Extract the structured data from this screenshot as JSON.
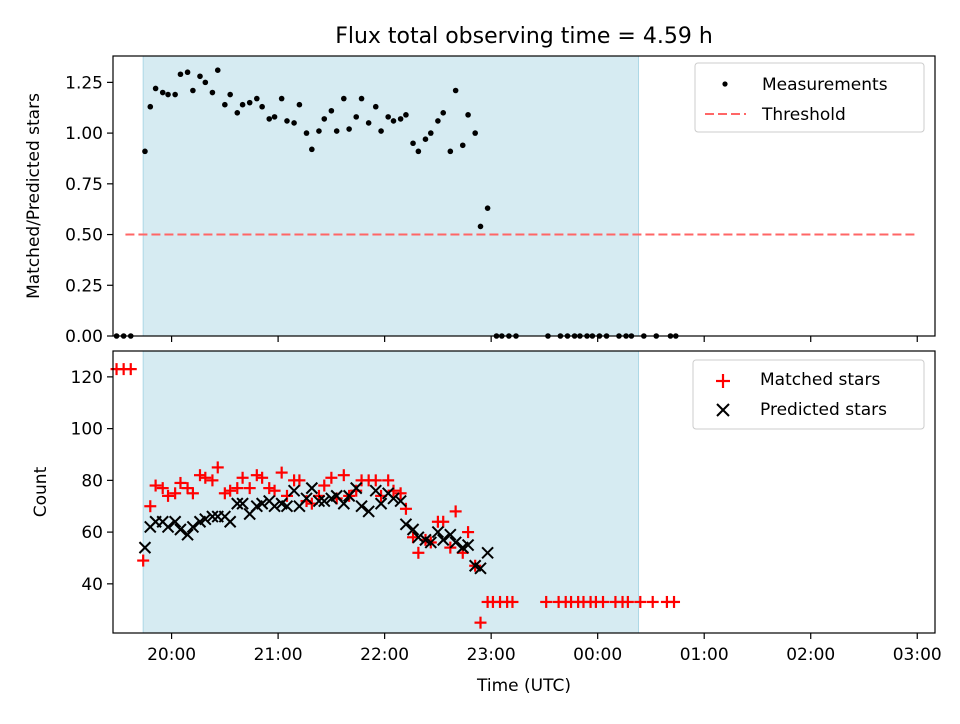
{
  "title": "Flux total observing time = 4.59 h",
  "colors": {
    "shade": "#add8e6",
    "measurement": "#000000",
    "threshold": "#ff6666",
    "matched": "#ff0000",
    "predicted": "#000000"
  },
  "chart_data": [
    {
      "type": "scatter",
      "ylabel": "Matched/Predicted stars",
      "ylim": [
        0,
        1.38
      ],
      "yticks": [
        "0.00",
        "0.25",
        "0.50",
        "0.75",
        "1.00",
        "1.25"
      ],
      "xlim": [
        "19:27",
        "03:10"
      ],
      "shaded_interval": [
        "19:44",
        "00:23"
      ],
      "legend": {
        "placement": "upper right",
        "entries": [
          "Measurements",
          "Threshold"
        ]
      },
      "threshold": {
        "name": "Threshold",
        "y": 0.5,
        "x": [
          "19:34",
          "02:59"
        ]
      },
      "series": [
        {
          "name": "Measurements",
          "marker": "dot",
          "points": [
            [
              "19:29",
              0.0
            ],
            [
              "19:33",
              0.0
            ],
            [
              "19:37",
              0.0
            ],
            [
              "19:45",
              0.91
            ],
            [
              "19:48",
              1.13
            ],
            [
              "19:51",
              1.22
            ],
            [
              "19:55",
              1.2
            ],
            [
              "19:58",
              1.19
            ],
            [
              "20:02",
              1.19
            ],
            [
              "20:05",
              1.29
            ],
            [
              "20:09",
              1.3
            ],
            [
              "20:12",
              1.21
            ],
            [
              "20:16",
              1.28
            ],
            [
              "20:19",
              1.25
            ],
            [
              "20:23",
              1.2
            ],
            [
              "20:26",
              1.31
            ],
            [
              "20:30",
              1.14
            ],
            [
              "20:33",
              1.19
            ],
            [
              "20:37",
              1.1
            ],
            [
              "20:40",
              1.14
            ],
            [
              "20:44",
              1.15
            ],
            [
              "20:48",
              1.17
            ],
            [
              "20:51",
              1.13
            ],
            [
              "20:55",
              1.07
            ],
            [
              "20:58",
              1.08
            ],
            [
              "21:02",
              1.17
            ],
            [
              "21:05",
              1.06
            ],
            [
              "21:09",
              1.05
            ],
            [
              "21:12",
              1.14
            ],
            [
              "21:16",
              1.0
            ],
            [
              "21:19",
              0.92
            ],
            [
              "21:23",
              1.01
            ],
            [
              "21:26",
              1.07
            ],
            [
              "21:30",
              1.11
            ],
            [
              "21:33",
              1.01
            ],
            [
              "21:37",
              1.17
            ],
            [
              "21:40",
              1.02
            ],
            [
              "21:44",
              1.08
            ],
            [
              "21:47",
              1.17
            ],
            [
              "21:51",
              1.05
            ],
            [
              "21:55",
              1.13
            ],
            [
              "21:58",
              1.01
            ],
            [
              "22:02",
              1.08
            ],
            [
              "22:05",
              1.06
            ],
            [
              "22:09",
              1.07
            ],
            [
              "22:12",
              1.09
            ],
            [
              "22:16",
              0.95
            ],
            [
              "22:19",
              0.91
            ],
            [
              "22:23",
              0.97
            ],
            [
              "22:26",
              1.0
            ],
            [
              "22:30",
              1.06
            ],
            [
              "22:33",
              1.1
            ],
            [
              "22:37",
              0.91
            ],
            [
              "22:40",
              1.21
            ],
            [
              "22:44",
              0.94
            ],
            [
              "22:47",
              1.09
            ],
            [
              "22:51",
              1.0
            ],
            [
              "22:54",
              0.54
            ],
            [
              "22:58",
              0.63
            ],
            [
              "23:03",
              0.0
            ],
            [
              "23:06",
              0.0
            ],
            [
              "23:10",
              0.0
            ],
            [
              "23:14",
              0.0
            ],
            [
              "23:32",
              0.0
            ],
            [
              "23:39",
              0.0
            ],
            [
              "23:43",
              0.0
            ],
            [
              "23:47",
              0.0
            ],
            [
              "23:50",
              0.0
            ],
            [
              "23:54",
              0.0
            ],
            [
              "23:57",
              0.0
            ],
            [
              "00:01",
              0.0
            ],
            [
              "00:05",
              0.0
            ],
            [
              "00:12",
              0.0
            ],
            [
              "00:16",
              0.0
            ],
            [
              "00:19",
              0.0
            ],
            [
              "00:26",
              0.0
            ],
            [
              "00:33",
              0.0
            ],
            [
              "00:41",
              0.0
            ],
            [
              "00:44",
              0.0
            ]
          ]
        }
      ]
    },
    {
      "type": "scatter",
      "title": "",
      "xlabel": "Time (UTC)",
      "ylabel": "Count",
      "ylim": [
        21,
        130
      ],
      "yticks": [
        "40",
        "60",
        "80",
        "100",
        "120"
      ],
      "xticks": [
        "20:00",
        "21:00",
        "22:00",
        "23:00",
        "00:00",
        "01:00",
        "02:00",
        "03:00"
      ],
      "xlim": [
        "19:27",
        "03:10"
      ],
      "shaded_interval": [
        "19:44",
        "00:23"
      ],
      "legend": {
        "placement": "upper right",
        "entries": [
          "Matched stars",
          "Predicted stars"
        ]
      },
      "series": [
        {
          "name": "Matched stars",
          "marker": "plus",
          "points": [
            [
              "19:29",
              123
            ],
            [
              "19:33",
              123
            ],
            [
              "19:37",
              123
            ],
            [
              "19:44",
              49
            ],
            [
              "19:48",
              70
            ],
            [
              "19:51",
              78
            ],
            [
              "19:55",
              77
            ],
            [
              "19:58",
              74
            ],
            [
              "20:02",
              75
            ],
            [
              "20:05",
              79
            ],
            [
              "20:09",
              77
            ],
            [
              "20:12",
              75
            ],
            [
              "20:16",
              82
            ],
            [
              "20:19",
              81
            ],
            [
              "20:23",
              80
            ],
            [
              "20:26",
              85
            ],
            [
              "20:30",
              75
            ],
            [
              "20:33",
              76
            ],
            [
              "20:37",
              77
            ],
            [
              "20:40",
              81
            ],
            [
              "20:44",
              77
            ],
            [
              "20:48",
              82
            ],
            [
              "20:51",
              81
            ],
            [
              "20:55",
              77
            ],
            [
              "20:58",
              76
            ],
            [
              "21:02",
              83
            ],
            [
              "21:05",
              74
            ],
            [
              "21:09",
              80
            ],
            [
              "21:12",
              80
            ],
            [
              "21:16",
              72
            ],
            [
              "21:19",
              71
            ],
            [
              "21:23",
              74
            ],
            [
              "21:26",
              78
            ],
            [
              "21:30",
              81
            ],
            [
              "21:33",
              73
            ],
            [
              "21:37",
              82
            ],
            [
              "21:40",
              74
            ],
            [
              "21:44",
              76
            ],
            [
              "21:47",
              80
            ],
            [
              "21:51",
              80
            ],
            [
              "21:55",
              80
            ],
            [
              "21:58",
              74
            ],
            [
              "22:02",
              80
            ],
            [
              "22:05",
              76
            ],
            [
              "22:09",
              75
            ],
            [
              "22:12",
              69
            ],
            [
              "22:16",
              58
            ],
            [
              "22:19",
              52
            ],
            [
              "22:23",
              57
            ],
            [
              "22:26",
              56
            ],
            [
              "22:30",
              64
            ],
            [
              "22:33",
              64
            ],
            [
              "22:37",
              54
            ],
            [
              "22:40",
              68
            ],
            [
              "22:44",
              52
            ],
            [
              "22:47",
              60
            ],
            [
              "22:51",
              47
            ],
            [
              "22:54",
              25
            ],
            [
              "22:58",
              33
            ],
            [
              "23:01",
              33
            ],
            [
              "23:05",
              33
            ],
            [
              "23:09",
              33
            ],
            [
              "23:12",
              33
            ],
            [
              "23:31",
              33
            ],
            [
              "23:38",
              33
            ],
            [
              "23:42",
              33
            ],
            [
              "23:45",
              33
            ],
            [
              "23:49",
              33
            ],
            [
              "23:52",
              33
            ],
            [
              "23:56",
              33
            ],
            [
              "23:59",
              33
            ],
            [
              "00:03",
              33
            ],
            [
              "00:10",
              33
            ],
            [
              "00:14",
              33
            ],
            [
              "00:17",
              33
            ],
            [
              "00:24",
              33
            ],
            [
              "00:31",
              33
            ],
            [
              "00:39",
              33
            ],
            [
              "00:43",
              33
            ]
          ]
        },
        {
          "name": "Predicted stars",
          "marker": "x",
          "points": [
            [
              "19:45",
              54
            ],
            [
              "19:48",
              62
            ],
            [
              "19:51",
              64
            ],
            [
              "19:55",
              64
            ],
            [
              "19:58",
              62
            ],
            [
              "20:02",
              64
            ],
            [
              "20:05",
              61
            ],
            [
              "20:09",
              59
            ],
            [
              "20:12",
              62
            ],
            [
              "20:16",
              64
            ],
            [
              "20:19",
              65
            ],
            [
              "20:23",
              66
            ],
            [
              "20:26",
              66
            ],
            [
              "20:30",
              66
            ],
            [
              "20:33",
              64
            ],
            [
              "20:37",
              71
            ],
            [
              "20:40",
              71
            ],
            [
              "20:44",
              67
            ],
            [
              "20:48",
              70
            ],
            [
              "20:51",
              71
            ],
            [
              "20:55",
              72
            ],
            [
              "20:58",
              70
            ],
            [
              "21:02",
              71
            ],
            [
              "21:05",
              70
            ],
            [
              "21:09",
              76
            ],
            [
              "21:12",
              70
            ],
            [
              "21:16",
              73
            ],
            [
              "21:19",
              77
            ],
            [
              "21:23",
              72
            ],
            [
              "21:26",
              72
            ],
            [
              "21:30",
              73
            ],
            [
              "21:33",
              74
            ],
            [
              "21:37",
              71
            ],
            [
              "21:40",
              74
            ],
            [
              "21:44",
              77
            ],
            [
              "21:47",
              70
            ],
            [
              "21:51",
              68
            ],
            [
              "21:55",
              76
            ],
            [
              "21:58",
              71
            ],
            [
              "22:02",
              75
            ],
            [
              "22:05",
              73
            ],
            [
              "22:09",
              72
            ],
            [
              "22:12",
              63
            ],
            [
              "22:16",
              61
            ],
            [
              "22:19",
              58
            ],
            [
              "22:23",
              57
            ],
            [
              "22:26",
              56
            ],
            [
              "22:30",
              60
            ],
            [
              "22:33",
              57
            ],
            [
              "22:37",
              59
            ],
            [
              "22:40",
              56
            ],
            [
              "22:44",
              54
            ],
            [
              "22:47",
              55
            ],
            [
              "22:51",
              47
            ],
            [
              "22:54",
              46
            ],
            [
              "22:58",
              52
            ]
          ]
        }
      ]
    }
  ]
}
